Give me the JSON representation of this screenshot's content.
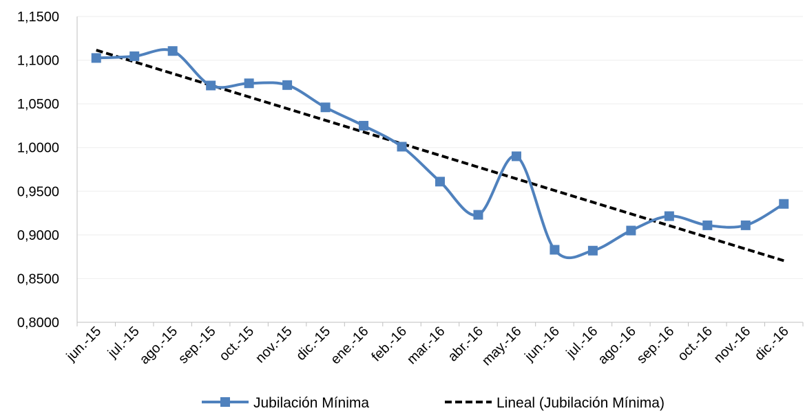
{
  "chart_data": {
    "type": "line",
    "title": "",
    "xlabel": "",
    "ylabel": "",
    "categories": [
      "jun.-15",
      "jul.-15",
      "ago.-15",
      "sep.-15",
      "oct.-15",
      "nov.-15",
      "dic.-15",
      "ene.-16",
      "feb.-16",
      "mar.-16",
      "abr.-16",
      "may.-16",
      "jun.-16",
      "jul.-16",
      "ago.-16",
      "sep.-16",
      "oct.-16",
      "nov.-16",
      "dic.-16"
    ],
    "ylim": [
      0.8,
      1.15
    ],
    "yticks": [
      "0,8000",
      "0,8500",
      "0,9000",
      "0,9500",
      "1,0000",
      "1,0500",
      "1,1000",
      "1,1500"
    ],
    "series": [
      {
        "name": "Jubilación Mínima",
        "color": "#4f81bd",
        "marker": "square",
        "smooth": true,
        "values": [
          1.1025,
          1.1045,
          1.1105,
          1.071,
          1.0735,
          1.0715,
          1.046,
          1.025,
          1.001,
          0.961,
          0.923,
          0.99,
          0.883,
          0.882,
          0.905,
          0.9215,
          0.911,
          0.911,
          0.9355
        ]
      },
      {
        "name": "Lineal (Jubilación Mínima)",
        "color": "#000000",
        "style": "dashed",
        "start": 1.1115,
        "end": 0.8705
      }
    ],
    "grid": true,
    "legend_position": "bottom"
  }
}
